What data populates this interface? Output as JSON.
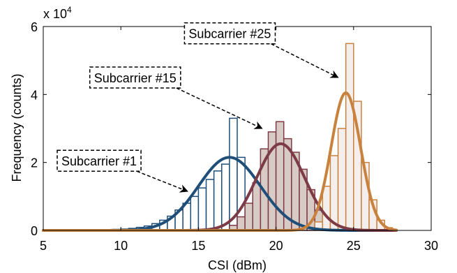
{
  "chart_data": {
    "type": "bar",
    "xlabel": "CSI (dBm)",
    "ylabel": "Frequency (counts)",
    "y_multiplier": "x 10",
    "y_multiplier_exp": "4",
    "xlim": [
      5,
      30
    ],
    "ylim": [
      0,
      60000
    ],
    "xticks": [
      5,
      10,
      15,
      20,
      25,
      30
    ],
    "xtick_labels": [
      "5",
      "10",
      "15",
      "20",
      "25",
      "30"
    ],
    "yticks": [
      0,
      20000,
      40000,
      60000
    ],
    "ytick_labels": [
      "0",
      "2",
      "4",
      "6"
    ],
    "grid": false,
    "bin_width": 0.5,
    "series": [
      {
        "name": "Subcarrier #1",
        "color": "#1f4e79",
        "fill": "#ffffff",
        "bin_centers": [
          9.25,
          9.75,
          10.25,
          10.75,
          11.25,
          11.75,
          12.25,
          12.75,
          13.25,
          13.75,
          14.25,
          14.75,
          15.25,
          15.75,
          16.25,
          16.75,
          17.25,
          17.75,
          18.25
        ],
        "counts": [
          200,
          300,
          400,
          600,
          900,
          1300,
          2000,
          3000,
          4200,
          6000,
          8000,
          10000,
          12500,
          15000,
          17500,
          19500,
          33000,
          21500,
          4000
        ],
        "fit": {
          "mean": 17.0,
          "peak": 21500,
          "sigma": 2.0
        }
      },
      {
        "name": "Subcarrier #15",
        "color": "#7d3b45",
        "fill": "#d8cbc6",
        "bin_centers": [
          17.25,
          17.75,
          18.25,
          18.75,
          19.25,
          19.75,
          20.25,
          20.75,
          21.25,
          21.75,
          22.25,
          22.75,
          23.25
        ],
        "counts": [
          1500,
          4000,
          8000,
          14000,
          24000,
          29000,
          32000,
          27000,
          23000,
          18000,
          12000,
          6000,
          2000
        ],
        "fit": {
          "mean": 20.3,
          "peak": 25500,
          "sigma": 1.55
        }
      },
      {
        "name": "Subcarrier #25",
        "color": "#c8823e",
        "fill": "#f4efed",
        "bin_centers": [
          22.75,
          23.25,
          23.75,
          24.25,
          24.75,
          25.25,
          25.75,
          26.25,
          26.75,
          27.25
        ],
        "counts": [
          2500,
          13000,
          22000,
          30000,
          55000,
          38000,
          20000,
          9000,
          3000,
          800
        ],
        "fit": {
          "mean": 24.5,
          "peak": 40500,
          "sigma": 0.95
        }
      }
    ],
    "annotations": [
      {
        "text": "Subcarrier #1",
        "box_x": 5.9,
        "box_y": 20500,
        "arrow_to": [
          14.3,
          11500
        ]
      },
      {
        "text": "Subcarrier #15",
        "box_x": 8.0,
        "box_y": 45000,
        "arrow_to": [
          19.1,
          30000
        ]
      },
      {
        "text": "Subcarrier #25",
        "box_x": 14.1,
        "box_y": 58000,
        "arrow_to": [
          24.0,
          45000
        ]
      }
    ]
  }
}
